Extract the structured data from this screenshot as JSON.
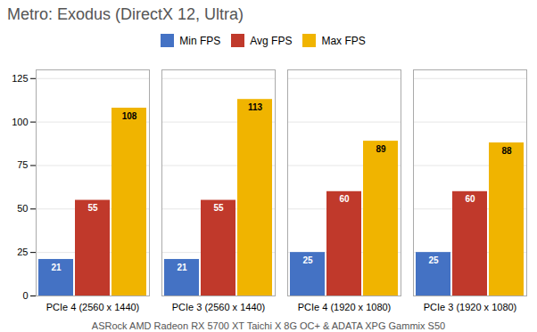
{
  "chart_data": {
    "type": "bar",
    "title": "Metro: Exodus (DirectX 12, Ultra)",
    "subtitle": "ASRock AMD Radeon RX 5700 XT Taichi X 8G OC+ & ADATA XPG Gammix S50",
    "categories": [
      "PCIe 4 (2560 x 1440)",
      "PCIe 3 (2560 x 1440)",
      "PCIe 4 (1920 x 1080)",
      "PCIe 3 (1920 x 1080)"
    ],
    "series": [
      {
        "name": "Min FPS",
        "color": "#4472C4",
        "values": [
          21,
          21,
          25,
          25
        ]
      },
      {
        "name": "Avg FPS",
        "color": "#C0392B",
        "values": [
          55,
          55,
          60,
          60
        ]
      },
      {
        "name": "Max FPS",
        "color": "#F0B400",
        "values": [
          108,
          113,
          89,
          88
        ]
      }
    ],
    "ylim": [
      0,
      130
    ],
    "yticks": [
      0,
      25,
      50,
      75,
      100,
      125
    ],
    "grid": true,
    "legend": "top",
    "data_labels": true
  }
}
